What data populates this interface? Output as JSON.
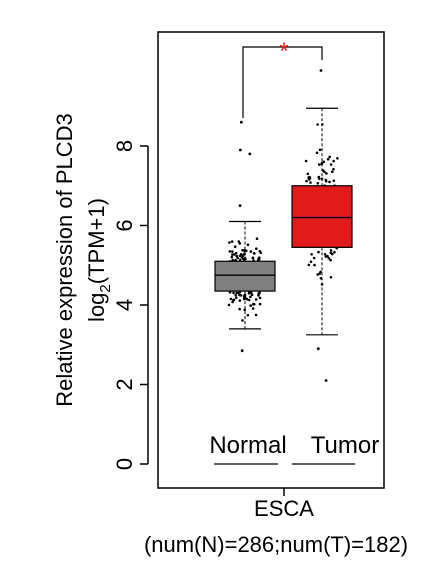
{
  "chart_data": {
    "type": "boxplot",
    "ylabel_line1": "Relative expression of PLCD3",
    "ylabel_line2_main": "log",
    "ylabel_line2_sub": "2",
    "ylabel_line2_rest": "(TPM+1)",
    "ylim": [
      -0.3,
      10.8
    ],
    "yticks": [
      "0",
      "2",
      "4",
      "6",
      "8"
    ],
    "xlabel_line1": "ESCA",
    "xlabel_line2": "(num(N)=286;num(T)=182)",
    "significance": "*",
    "colors": {
      "normal": "#808080",
      "tumor": "#e31a1c",
      "star": "#e31a1c"
    },
    "groups": [
      {
        "name": "Normal",
        "q1": 4.35,
        "median": 4.75,
        "q3": 5.1,
        "whisker_low": 3.4,
        "whisker_high": 6.1,
        "outliers": [
          2.85,
          6.5,
          7.8,
          7.9,
          8.6
        ]
      },
      {
        "name": "Tumor",
        "q1": 5.45,
        "median": 6.2,
        "q3": 7.0,
        "whisker_low": 3.25,
        "whisker_high": 8.95,
        "outliers": [
          2.1,
          2.9,
          9.9
        ]
      }
    ],
    "group_zero_labels": [
      "Normal",
      "Tumor"
    ]
  }
}
